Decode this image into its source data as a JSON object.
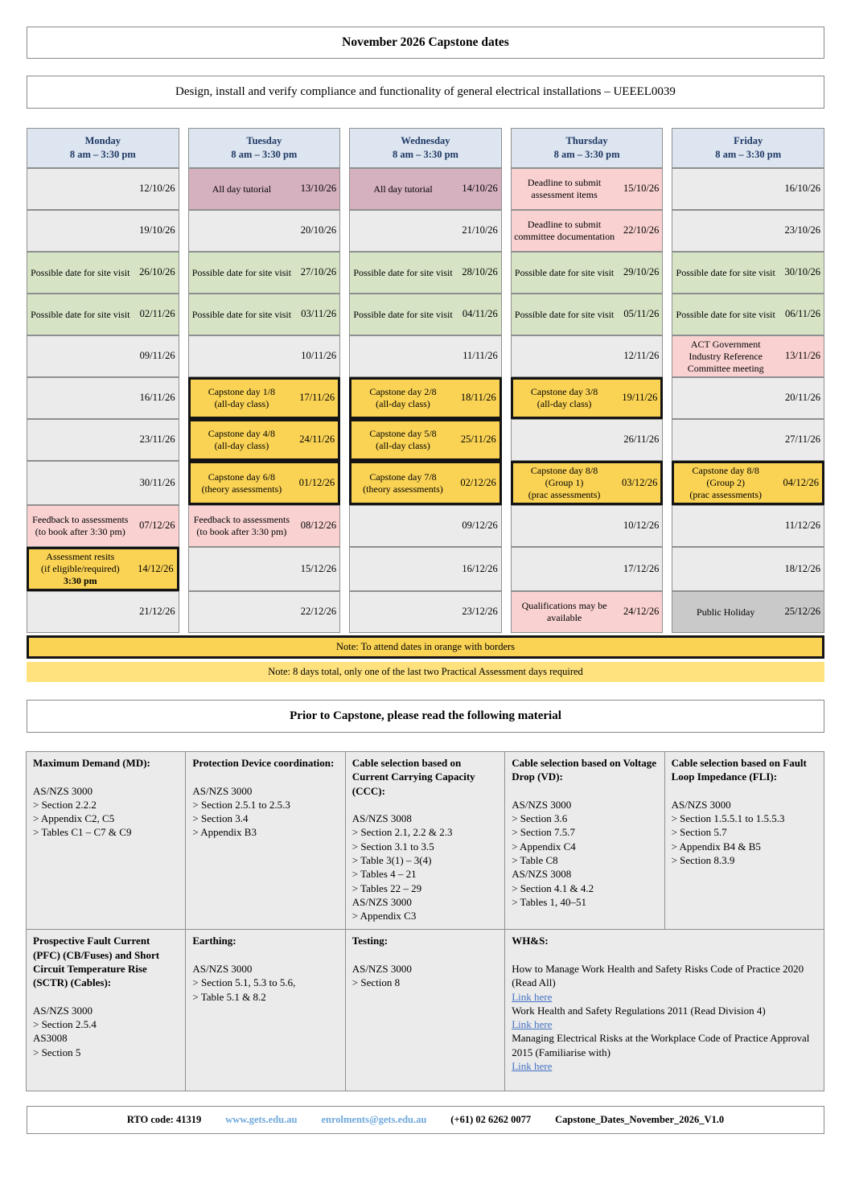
{
  "title": "November 2026 Capstone dates",
  "subject": "Design, install and verify compliance and functionality of general electrical installations – UEEEL0039",
  "colors": {
    "header_bg": "#dce5f0",
    "empty_cell": "#ebebeb",
    "tutorial_cell": "#d5b0bf",
    "deadline_cell": "#f9d1d1",
    "site_visit_cell": "#d6e3c5",
    "capstone_cell": "#fad355",
    "capstone_border": "#141414",
    "holiday_cell": "#c9c9c9",
    "note2_bg": "#ffe27d",
    "link_blue": "#4472c4",
    "footer_link_blue": "#6fa8dc",
    "day_header_text": "#1f3864"
  },
  "calendar": {
    "day_headers": [
      {
        "day": "Monday",
        "time": "8 am – 3:30 pm"
      },
      {
        "day": "Tuesday",
        "time": "8 am – 3:30 pm"
      },
      {
        "day": "Wednesday",
        "time": "8 am – 3:30 pm"
      },
      {
        "day": "Thursday",
        "time": "8 am – 3:30 pm"
      },
      {
        "day": "Friday",
        "time": "8 am – 3:30 pm"
      }
    ],
    "weeks": [
      [
        {
          "label": "",
          "date": "12/10/26",
          "type": "grey"
        },
        {
          "label": "All day tutorial",
          "date": "13/10/26",
          "type": "mauve"
        },
        {
          "label": "All day tutorial",
          "date": "14/10/26",
          "type": "mauve"
        },
        {
          "label": "Deadline to submit assessment items",
          "date": "15/10/26",
          "type": "pink"
        },
        {
          "label": "",
          "date": "16/10/26",
          "type": "grey"
        }
      ],
      [
        {
          "label": "",
          "date": "19/10/26",
          "type": "grey"
        },
        {
          "label": "",
          "date": "20/10/26",
          "type": "grey"
        },
        {
          "label": "",
          "date": "21/10/26",
          "type": "grey"
        },
        {
          "label": "Deadline to submit committee documentation",
          "date": "22/10/26",
          "type": "pink"
        },
        {
          "label": "",
          "date": "23/10/26",
          "type": "grey"
        }
      ],
      [
        {
          "label": "Possible date for site visit",
          "date": "26/10/26",
          "type": "green"
        },
        {
          "label": "Possible date for site visit",
          "date": "27/10/26",
          "type": "green"
        },
        {
          "label": "Possible date for site visit",
          "date": "28/10/26",
          "type": "green"
        },
        {
          "label": "Possible date for site visit",
          "date": "29/10/26",
          "type": "green"
        },
        {
          "label": "Possible date for site visit",
          "date": "30/10/26",
          "type": "green"
        }
      ],
      [
        {
          "label": "Possible date for site visit",
          "date": "02/11/26",
          "type": "green"
        },
        {
          "label": "Possible date for site visit",
          "date": "03/11/26",
          "type": "green"
        },
        {
          "label": "Possible date for site visit",
          "date": "04/11/26",
          "type": "green"
        },
        {
          "label": "Possible date for site visit",
          "date": "05/11/26",
          "type": "green"
        },
        {
          "label": "Possible date for site visit",
          "date": "06/11/26",
          "type": "green"
        }
      ],
      [
        {
          "label": "",
          "date": "09/11/26",
          "type": "grey"
        },
        {
          "label": "",
          "date": "10/11/26",
          "type": "grey"
        },
        {
          "label": "",
          "date": "11/11/26",
          "type": "grey"
        },
        {
          "label": "",
          "date": "12/11/26",
          "type": "grey"
        },
        {
          "label": "ACT Government Industry Reference Committee meeting",
          "date": "13/11/26",
          "type": "pink"
        }
      ],
      [
        {
          "label": "",
          "date": "16/11/26",
          "type": "grey"
        },
        {
          "label": "Capstone day 1/8\n(all-day class)",
          "date": "17/11/26",
          "type": "orange"
        },
        {
          "label": "Capstone day 2/8\n(all-day class)",
          "date": "18/11/26",
          "type": "orange"
        },
        {
          "label": "Capstone day 3/8\n(all-day class)",
          "date": "19/11/26",
          "type": "orange"
        },
        {
          "label": "",
          "date": "20/11/26",
          "type": "grey"
        }
      ],
      [
        {
          "label": "",
          "date": "23/11/26",
          "type": "grey"
        },
        {
          "label": "Capstone day 4/8\n(all-day class)",
          "date": "24/11/26",
          "type": "orange"
        },
        {
          "label": "Capstone day 5/8\n(all-day class)",
          "date": "25/11/26",
          "type": "orange"
        },
        {
          "label": "",
          "date": "26/11/26",
          "type": "grey"
        },
        {
          "label": "",
          "date": "27/11/26",
          "type": "grey"
        }
      ],
      [
        {
          "label": "",
          "date": "30/11/26",
          "type": "grey"
        },
        {
          "label": "Capstone day 6/8\n(theory assessments)",
          "date": "01/12/26",
          "type": "orange"
        },
        {
          "label": "Capstone day 7/8\n(theory assessments)",
          "date": "02/12/26",
          "type": "orange"
        },
        {
          "label": "Capstone day 8/8\n(Group 1)\n(prac assessments)",
          "date": "03/12/26",
          "type": "orange"
        },
        {
          "label": "Capstone day 8/8\n(Group 2)\n(prac assessments)",
          "date": "04/12/26",
          "type": "orange"
        }
      ],
      [
        {
          "label": "Feedback to assessments (to book after 3:30 pm)",
          "date": "07/12/26",
          "type": "pink"
        },
        {
          "label": "Feedback to assessments (to book after 3:30 pm)",
          "date": "08/12/26",
          "type": "pink"
        },
        {
          "label": "",
          "date": "09/12/26",
          "type": "grey"
        },
        {
          "label": "",
          "date": "10/12/26",
          "type": "grey"
        },
        {
          "label": "",
          "date": "11/12/26",
          "type": "grey"
        }
      ],
      [
        {
          "label": "Assessment resits\n(if eligible/required)",
          "label2": "3:30 pm",
          "date": "14/12/26",
          "type": "orange"
        },
        {
          "label": "",
          "date": "15/12/26",
          "type": "grey"
        },
        {
          "label": "",
          "date": "16/12/26",
          "type": "grey"
        },
        {
          "label": "",
          "date": "17/12/26",
          "type": "grey"
        },
        {
          "label": "",
          "date": "18/12/26",
          "type": "grey"
        }
      ],
      [
        {
          "label": "",
          "date": "21/12/26",
          "type": "grey"
        },
        {
          "label": "",
          "date": "22/12/26",
          "type": "grey"
        },
        {
          "label": "",
          "date": "23/12/26",
          "type": "grey"
        },
        {
          "label": "Qualifications may be available",
          "date": "24/12/26",
          "type": "pink"
        },
        {
          "label": "Public Holiday",
          "date": "25/12/26",
          "type": "darkgrey"
        }
      ]
    ]
  },
  "notes": {
    "note1": "Note: To attend dates in orange with borders",
    "note2": "Note: 8 days total, only one of the last two Practical Assessment days required"
  },
  "materials": {
    "heading": "Prior to Capstone, please read the following material",
    "rows": [
      [
        {
          "title": "Maximum Demand (MD):",
          "lines": [
            "",
            "AS/NZS 3000",
            "> Section 2.2.2",
            "> Appendix C2, C5",
            "> Tables C1 – C7 & C9"
          ]
        },
        {
          "title": "Protection Device coordination:",
          "lines": [
            "",
            "AS/NZS 3000",
            "> Section 2.5.1 to 2.5.3",
            "> Section 3.4",
            "> Appendix B3"
          ]
        },
        {
          "title": "Cable selection based on Current Carrying Capacity (CCC):",
          "lines": [
            "",
            "AS/NZS 3008",
            "> Section 2.1, 2.2 & 2.3",
            "> Section 3.1 to 3.5",
            "> Table 3(1) – 3(4)",
            "> Tables 4 – 21",
            "> Tables 22 – 29",
            "AS/NZS 3000",
            "> Appendix C3"
          ]
        },
        {
          "title": "Cable selection based on Voltage Drop (VD):",
          "lines": [
            "",
            "AS/NZS 3000",
            "> Section 3.6",
            "> Section 7.5.7",
            "> Appendix C4",
            "> Table C8",
            "AS/NZS 3008",
            "> Section 4.1 & 4.2",
            "> Tables 1, 40–51"
          ]
        },
        {
          "title": "Cable selection based on Fault Loop Impedance (FLI):",
          "lines": [
            "",
            "AS/NZS 3000",
            "> Section 1.5.5.1 to 1.5.5.3",
            "> Section 5.7",
            "> Appendix B4 & B5",
            "> Section 8.3.9"
          ]
        }
      ],
      [
        {
          "title": "Prospective Fault Current (PFC) (CB/Fuses) and Short Circuit Temperature Rise (SCTR) (Cables):",
          "lines": [
            "",
            "AS/NZS 3000",
            "> Section 2.5.4",
            "AS3008",
            "> Section 5"
          ]
        },
        {
          "title": "Earthing:",
          "lines": [
            "",
            "AS/NZS 3000",
            "> Section 5.1, 5.3 to 5.6,",
            "> Table 5.1 & 8.2"
          ]
        },
        {
          "title": "Testing:",
          "lines": [
            "",
            "AS/NZS 3000",
            "> Section 8"
          ]
        },
        {
          "title": "WH&S:",
          "span": 2,
          "lines": [
            "",
            "How to Manage Work Health and Safety Risks Code of Practice 2020 (Read All)",
            {
              "link": "Link here"
            },
            "Work Health and Safety Regulations 2011 (Read Division 4)",
            {
              "link": "Link here"
            },
            "Managing Electrical Risks at the Workplace Code of Practice Approval 2015 (Familiarise with)",
            {
              "link": "Link here"
            }
          ]
        }
      ]
    ]
  },
  "footer": {
    "items": [
      {
        "text": "RTO code: 41319",
        "style": "bold"
      },
      {
        "text": "www.gets.edu.au",
        "style": "link"
      },
      {
        "text": "enrolments@gets.edu.au",
        "style": "link"
      },
      {
        "text": "(+61) 02 6262 0077",
        "style": "bold"
      },
      {
        "text": "Capstone_Dates_November_2026_V1.0",
        "style": "bold"
      }
    ]
  }
}
